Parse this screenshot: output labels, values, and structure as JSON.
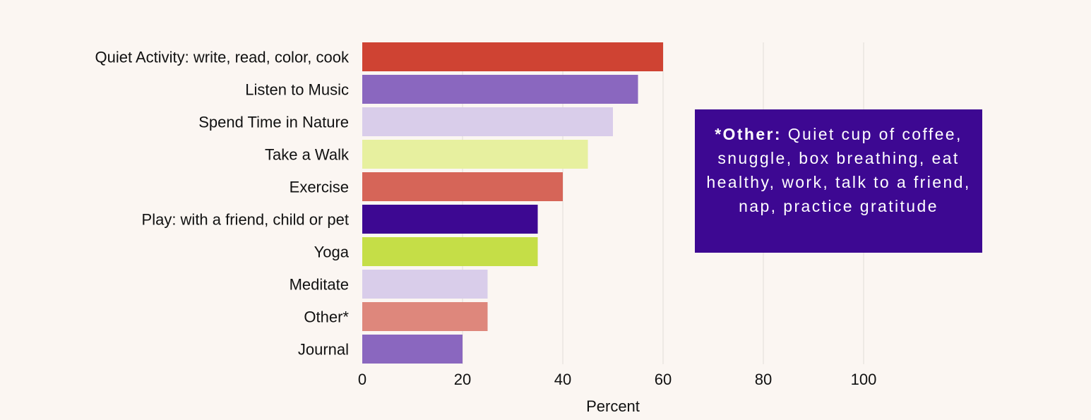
{
  "chart_data": {
    "type": "bar",
    "orientation": "horizontal",
    "title": "",
    "xlabel": "Percent",
    "ylabel": "",
    "xlim": [
      0,
      120
    ],
    "xticks": [
      0,
      20,
      40,
      60,
      80,
      100
    ],
    "xtick_labels": [
      "0",
      "20",
      "40",
      "60",
      "80",
      "100"
    ],
    "grid": true,
    "categories": [
      "Quiet Activity: write, read, color, cook",
      "Listen to Music",
      "Spend Time in Nature",
      "Take a Walk",
      "Exercise",
      "Play: with a friend, child or pet",
      "Yoga",
      "Meditate",
      "Other*",
      "Journal"
    ],
    "values": [
      60,
      55,
      50,
      45,
      40,
      35,
      35,
      25,
      25,
      20
    ],
    "colors": [
      "#cf4333",
      "#8a67bf",
      "#d9cdea",
      "#e7f09f",
      "#d66558",
      "#3d0892",
      "#c5de47",
      "#d9cdea",
      "#de877c",
      "#8a67bf"
    ],
    "annotation": {
      "lead": "*Other:",
      "text": "Quiet cup of coffee, snuggle, box breathing, eat healthy, work, talk to a friend, nap, practice gratitude",
      "background": "#3d0892"
    }
  }
}
